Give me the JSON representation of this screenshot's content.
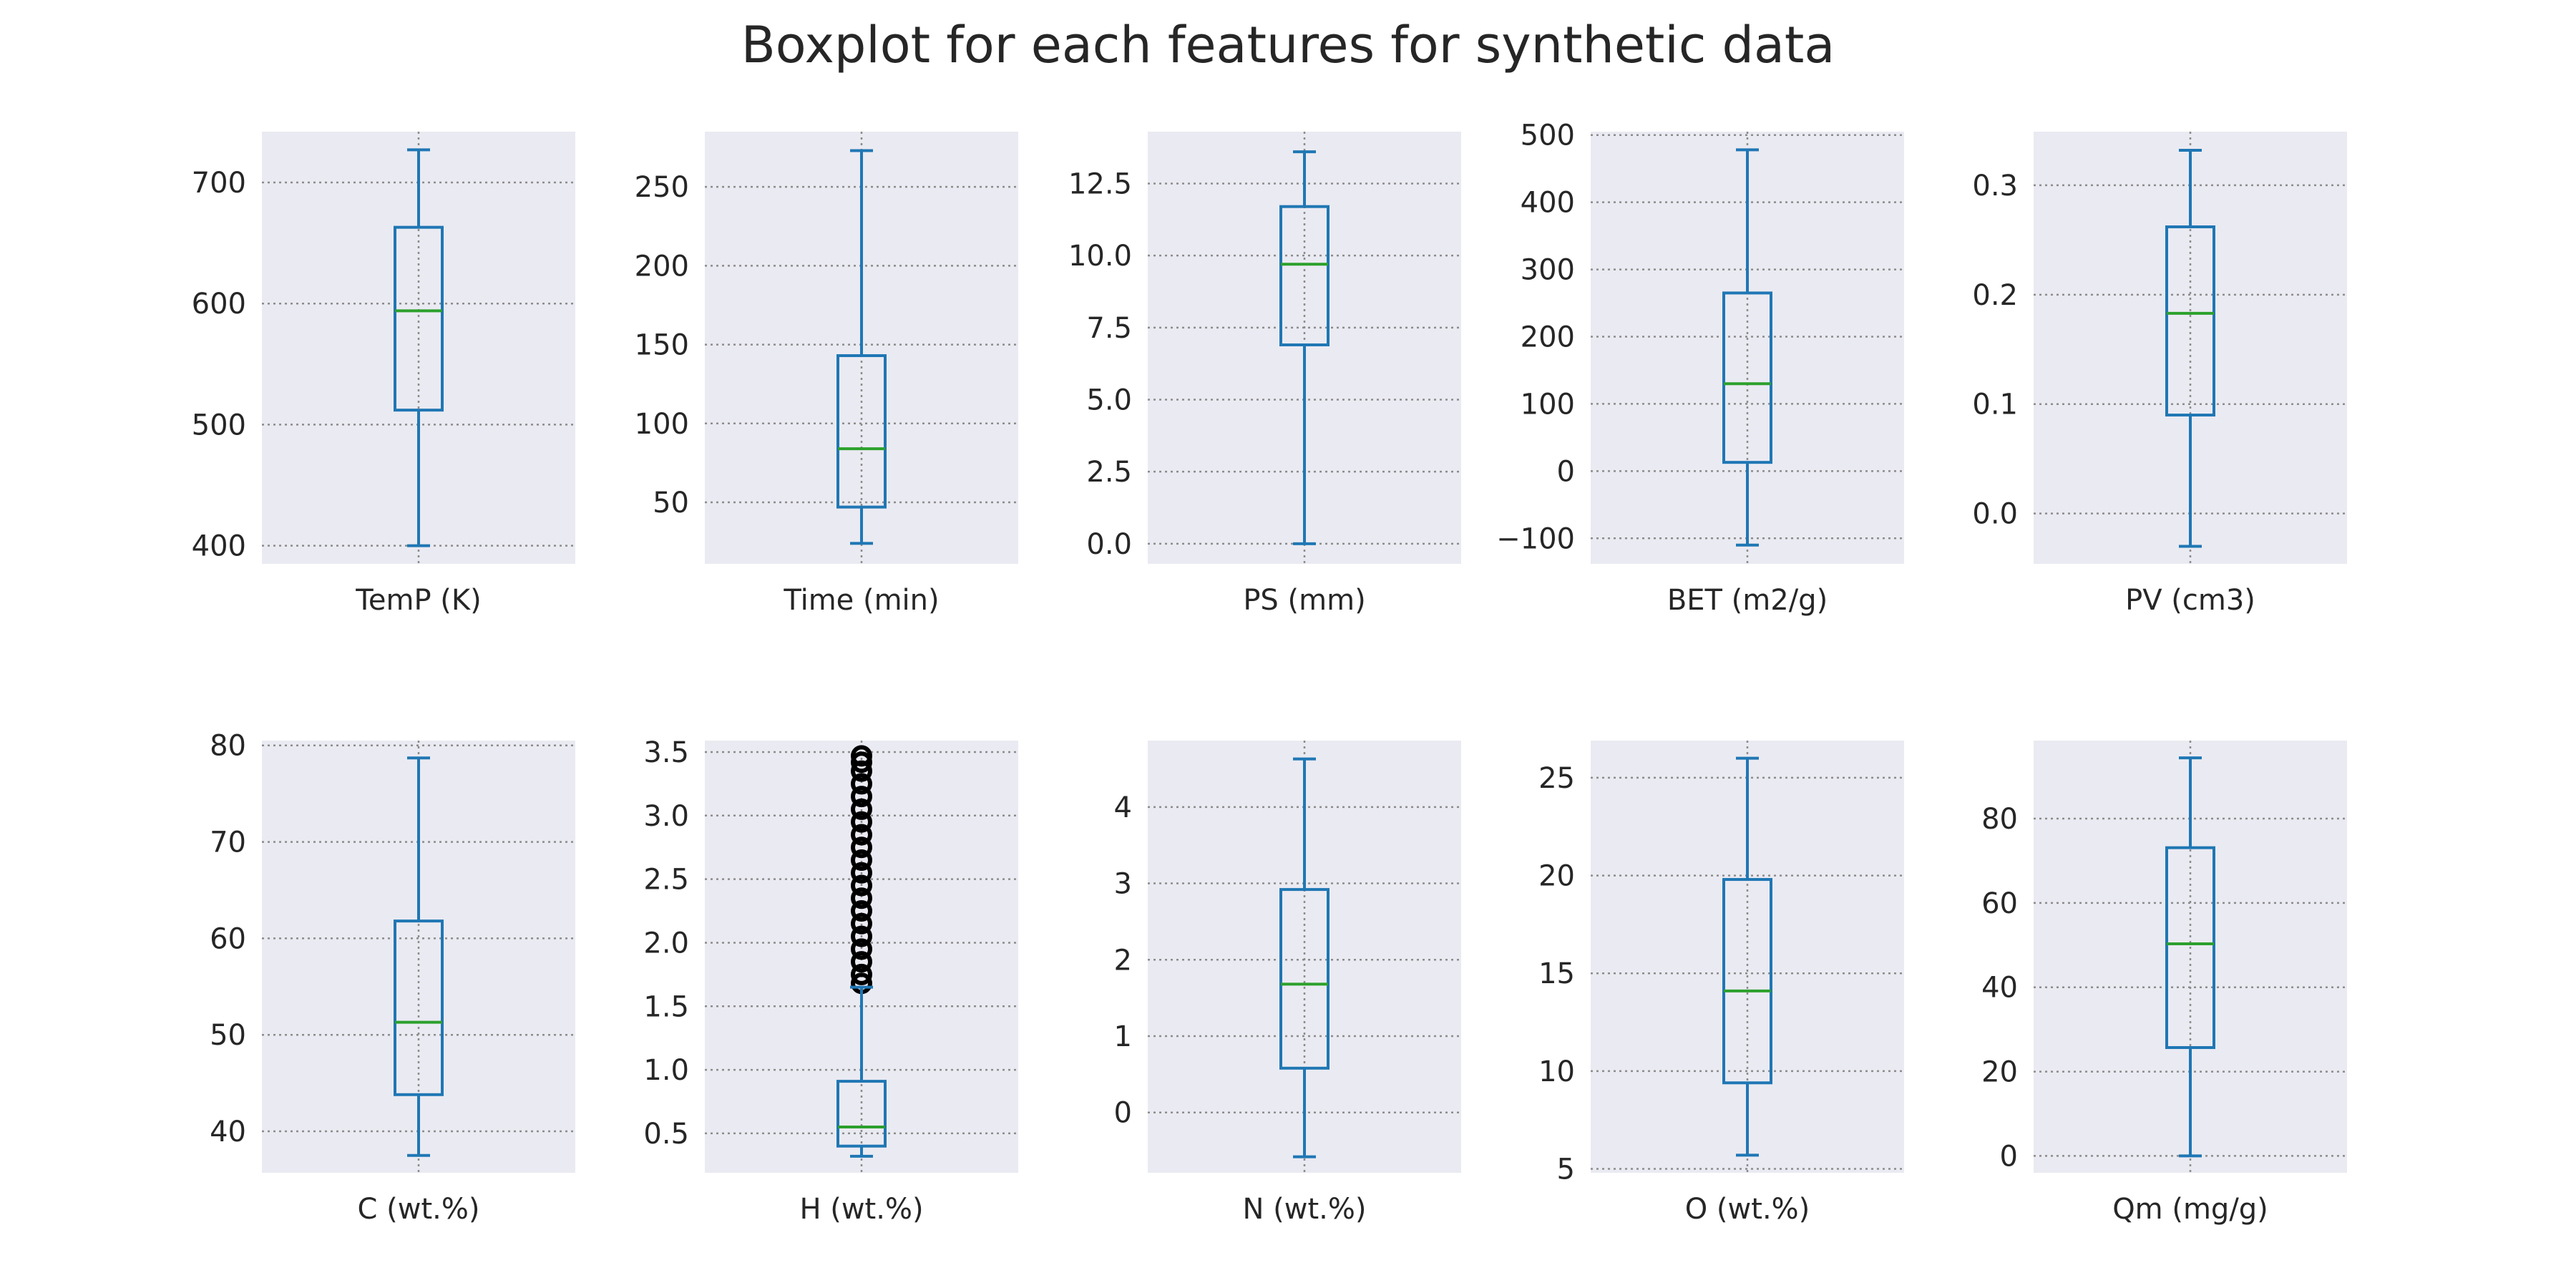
{
  "title": "Boxplot for each features for synthetic data",
  "colors": {
    "panel_bg": "#eaeaf2",
    "grid": "#8c8c8c",
    "box": "#1f77b4",
    "median": "#2ca02c",
    "outlier": "#000000",
    "text": "#262626"
  },
  "chart_data": [
    {
      "type": "box",
      "category": "TemP (K)",
      "ylim": [
        385,
        742
      ],
      "yticks": [
        400,
        500,
        600,
        700
      ],
      "ytick_labels": [
        "400",
        "500",
        "600",
        "700"
      ],
      "whisker_low": 400,
      "q1": 512,
      "median": 594,
      "q3": 663,
      "whisker_high": 727,
      "outliers": [],
      "grid": true
    },
    {
      "type": "box",
      "category": "Time (min)",
      "ylim": [
        11,
        285
      ],
      "yticks": [
        50,
        100,
        150,
        200,
        250
      ],
      "ytick_labels": [
        "50",
        "100",
        "150",
        "200",
        "250"
      ],
      "whisker_low": 24,
      "q1": 47,
      "median": 84,
      "q3": 143,
      "whisker_high": 273,
      "outliers": [],
      "grid": true
    },
    {
      "type": "box",
      "category": "PS (mm)",
      "ylim": [
        -0.7,
        14.3
      ],
      "yticks": [
        0.0,
        2.5,
        5.0,
        7.5,
        10.0,
        12.5
      ],
      "ytick_labels": [
        "0.0",
        "2.5",
        "5.0",
        "7.5",
        "10.0",
        "12.5"
      ],
      "whisker_low": 0.0,
      "q1": 6.9,
      "median": 9.7,
      "q3": 11.7,
      "whisker_high": 13.6,
      "outliers": [],
      "grid": true
    },
    {
      "type": "box",
      "category": "BET (m2/g)",
      "ylim": [
        -138,
        505
      ],
      "yticks": [
        -100,
        0,
        100,
        200,
        300,
        400,
        500
      ],
      "ytick_labels": [
        "−100",
        "0",
        "100",
        "200",
        "300",
        "400",
        "500"
      ],
      "whisker_low": -110,
      "q1": 13,
      "median": 130,
      "q3": 265,
      "whisker_high": 478,
      "outliers": [],
      "grid": true
    },
    {
      "type": "box",
      "category": "PV (cm3)",
      "ylim": [
        -0.046,
        0.349
      ],
      "yticks": [
        0.0,
        0.1,
        0.2,
        0.3
      ],
      "ytick_labels": [
        "0.0",
        "0.1",
        "0.2",
        "0.3"
      ],
      "whisker_low": -0.03,
      "q1": 0.09,
      "median": 0.183,
      "q3": 0.262,
      "whisker_high": 0.332,
      "outliers": [],
      "grid": true
    },
    {
      "type": "box",
      "category": "C (wt.%)",
      "ylim": [
        35.7,
        80.5
      ],
      "yticks": [
        40,
        50,
        60,
        70,
        80
      ],
      "ytick_labels": [
        "40",
        "50",
        "60",
        "70",
        "80"
      ],
      "whisker_low": 37.5,
      "q1": 43.8,
      "median": 51.3,
      "q3": 61.8,
      "whisker_high": 78.7,
      "outliers": [],
      "grid": true
    },
    {
      "type": "box",
      "category": "H  (wt.%)",
      "ylim": [
        0.19,
        3.59
      ],
      "yticks": [
        0.5,
        1.0,
        1.5,
        2.0,
        2.5,
        3.0,
        3.5
      ],
      "ytick_labels": [
        "0.5",
        "1.0",
        "1.5",
        "2.0",
        "2.5",
        "3.0",
        "3.5"
      ],
      "whisker_low": 0.32,
      "q1": 0.4,
      "median": 0.55,
      "q3": 0.91,
      "whisker_high": 1.65,
      "outliers": [
        1.68,
        1.75,
        1.85,
        1.95,
        2.05,
        2.15,
        2.25,
        2.35,
        2.45,
        2.55,
        2.65,
        2.75,
        2.85,
        2.95,
        3.05,
        3.15,
        3.25,
        3.35,
        3.42,
        3.47
      ],
      "grid": true
    },
    {
      "type": "box",
      "category": "N  (wt.%)",
      "ylim": [
        -0.79,
        4.87
      ],
      "yticks": [
        0,
        1,
        2,
        3,
        4
      ],
      "ytick_labels": [
        "0",
        "1",
        "2",
        "3",
        "4"
      ],
      "whisker_low": -0.58,
      "q1": 0.58,
      "median": 1.68,
      "q3": 2.92,
      "whisker_high": 4.63,
      "outliers": [],
      "grid": true
    },
    {
      "type": "box",
      "category": "O  (wt.%)",
      "ylim": [
        4.8,
        26.9
      ],
      "yticks": [
        5,
        10,
        15,
        20,
        25
      ],
      "ytick_labels": [
        "5",
        "10",
        "15",
        "20",
        "25"
      ],
      "whisker_low": 5.7,
      "q1": 9.4,
      "median": 14.1,
      "q3": 19.8,
      "whisker_high": 26.0,
      "outliers": [],
      "grid": true
    },
    {
      "type": "box",
      "category": "Qm (mg/g)",
      "ylim": [
        -4,
        98.5
      ],
      "yticks": [
        0,
        20,
        40,
        60,
        80
      ],
      "ytick_labels": [
        "0",
        "20",
        "40",
        "60",
        "80"
      ],
      "whisker_low": 0,
      "q1": 25.7,
      "median": 50.3,
      "q3": 73.1,
      "whisker_high": 94.4,
      "outliers": [],
      "grid": true
    }
  ]
}
